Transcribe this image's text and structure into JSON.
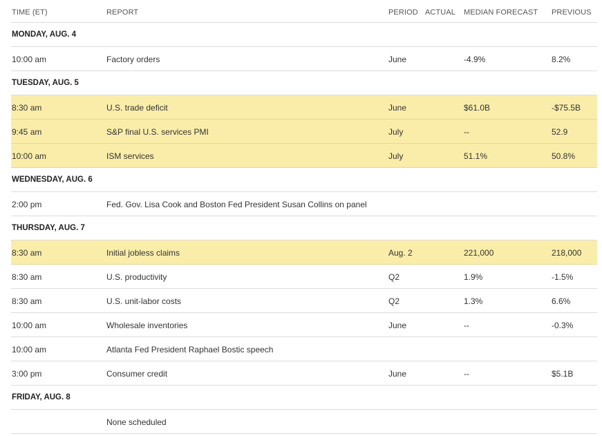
{
  "header": {
    "time": "TIME (ET)",
    "report": "REPORT",
    "period": "PERIOD",
    "actual": "ACTUAL",
    "median": "MEDIAN FORECAST",
    "previous": "PREVIOUS"
  },
  "colors": {
    "highlight": "#faedaa",
    "divider": "#dcdcdc"
  },
  "rows": [
    {
      "type": "day",
      "label": "MONDAY, AUG. 4"
    },
    {
      "type": "event",
      "highlighted": false,
      "time": "10:00 am",
      "report": "Factory orders",
      "period": "June",
      "actual": "",
      "median": "-4.9%",
      "previous": "8.2%"
    },
    {
      "type": "day",
      "label": "TUESDAY, AUG. 5"
    },
    {
      "type": "event",
      "highlighted": true,
      "time": "8:30 am",
      "report": "U.S. trade deficit",
      "period": "June",
      "actual": "",
      "median": "$61.0B",
      "previous": "-$75.5B"
    },
    {
      "type": "event",
      "highlighted": true,
      "time": "9:45 am",
      "report": "S&P final U.S. services PMI",
      "period": "July",
      "actual": "",
      "median": "--",
      "previous": "52.9"
    },
    {
      "type": "event",
      "highlighted": true,
      "time": "10:00 am",
      "report": "ISM services",
      "period": "July",
      "actual": "",
      "median": "51.1%",
      "previous": "50.8%"
    },
    {
      "type": "day",
      "label": "WEDNESDAY, AUG. 6"
    },
    {
      "type": "event",
      "highlighted": false,
      "time": "2:00 pm",
      "report": "Fed. Gov. Lisa Cook and Boston Fed President Susan Collins on panel",
      "period": "",
      "actual": "",
      "median": "",
      "previous": ""
    },
    {
      "type": "day",
      "label": "THURSDAY, AUG. 7"
    },
    {
      "type": "event",
      "highlighted": true,
      "time": "8:30 am",
      "report": "Initial jobless claims",
      "period": "Aug. 2",
      "actual": "",
      "median": "221,000",
      "previous": "218,000"
    },
    {
      "type": "event",
      "highlighted": false,
      "time": "8:30 am",
      "report": "U.S. productivity",
      "period": "Q2",
      "actual": "",
      "median": "1.9%",
      "previous": "-1.5%"
    },
    {
      "type": "event",
      "highlighted": false,
      "time": "8:30 am",
      "report": "U.S. unit-labor costs",
      "period": "Q2",
      "actual": "",
      "median": "1.3%",
      "previous": "6.6%"
    },
    {
      "type": "event",
      "highlighted": false,
      "time": "10:00 am",
      "report": "Wholesale inventories",
      "period": "June",
      "actual": "",
      "median": "--",
      "previous": "-0.3%"
    },
    {
      "type": "event",
      "highlighted": false,
      "time": "10:00 am",
      "report": "Atlanta Fed President Raphael Bostic speech",
      "period": "",
      "actual": "",
      "median": "",
      "previous": ""
    },
    {
      "type": "event",
      "highlighted": false,
      "time": "3:00 pm",
      "report": "Consumer credit",
      "period": "June",
      "actual": "",
      "median": "--",
      "previous": "$5.1B"
    },
    {
      "type": "day",
      "label": "FRIDAY, AUG. 8"
    },
    {
      "type": "event",
      "highlighted": false,
      "time": "",
      "report": "None scheduled",
      "period": "",
      "actual": "",
      "median": "",
      "previous": ""
    }
  ]
}
